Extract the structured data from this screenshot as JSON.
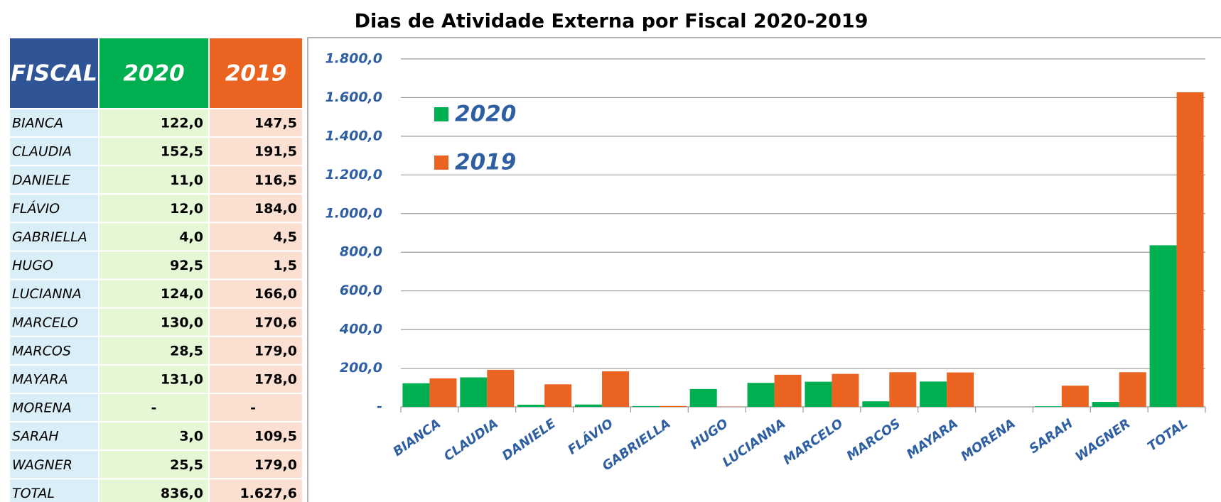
{
  "table": {
    "header": [
      "FISCAL",
      "2020",
      "2019"
    ],
    "rows": [
      [
        "BIANCA",
        "122,0",
        "147,5"
      ],
      [
        "CLAUDIA",
        "152,5",
        "191,5"
      ],
      [
        "DANIELE",
        "11,0",
        "116,5"
      ],
      [
        "FLÁVIO",
        "12,0",
        "184,0"
      ],
      [
        "GABRIELLA",
        "4,0",
        "4,5"
      ],
      [
        "HUGO",
        "92,5",
        "1,5"
      ],
      [
        "LUCIANNA",
        "124,0",
        "166,0"
      ],
      [
        "MARCELO",
        "130,0",
        "170,6"
      ],
      [
        "MARCOS",
        "28,5",
        "179,0"
      ],
      [
        "MAYARA",
        "131,0",
        "178,0"
      ],
      [
        "MORENA",
        "-",
        "-"
      ],
      [
        "SARAH",
        "3,0",
        "109,5"
      ],
      [
        "WAGNER",
        "25,5",
        "179,0"
      ],
      [
        "TOTAL",
        "836,0",
        "1.627,6"
      ]
    ]
  },
  "chart_data": {
    "type": "bar",
    "title": "Dias de Atividade Externa por Fiscal 2020-2019",
    "categories": [
      "BIANCA",
      "CLAUDIA",
      "DANIELE",
      "FLÁVIO",
      "GABRIELLA",
      "HUGO",
      "LUCIANNA",
      "MARCELO",
      "MARCOS",
      "MAYARA",
      "MORENA",
      "SARAH",
      "WAGNER",
      "TOTAL"
    ],
    "series": [
      {
        "name": "2020",
        "color": "#00b050",
        "values": [
          122.0,
          152.5,
          11.0,
          12.0,
          4.0,
          92.5,
          124.0,
          130.0,
          28.5,
          131.0,
          0,
          3.0,
          25.5,
          836.0
        ]
      },
      {
        "name": "2019",
        "color": "#ea6320",
        "values": [
          147.5,
          191.5,
          116.5,
          184.0,
          4.5,
          1.5,
          166.0,
          170.6,
          179.0,
          178.0,
          0,
          109.5,
          179.0,
          1627.6
        ]
      }
    ],
    "ylim": [
      0,
      1800
    ],
    "yticks": [
      {
        "value": 0,
        "label": "-"
      },
      {
        "value": 200,
        "label": "200,0"
      },
      {
        "value": 400,
        "label": "400,0"
      },
      {
        "value": 600,
        "label": "600,0"
      },
      {
        "value": 800,
        "label": "800,0"
      },
      {
        "value": 1000,
        "label": "1.000,0"
      },
      {
        "value": 1200,
        "label": "1.200,0"
      },
      {
        "value": 1400,
        "label": "1.400,0"
      },
      {
        "value": 1600,
        "label": "1.600,0"
      },
      {
        "value": 1800,
        "label": "1.800,0"
      }
    ],
    "grid": true,
    "legend": "upper left"
  }
}
